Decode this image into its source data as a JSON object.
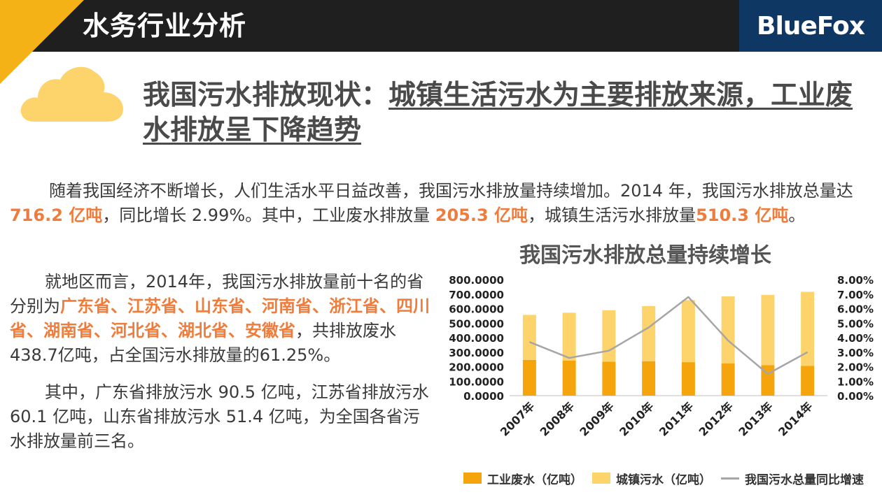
{
  "header": {
    "title": "水务行业分析",
    "logo_text": "BlueFox"
  },
  "colors": {
    "accent": "#f5b216",
    "industrial": "#f5a40c",
    "urban": "#fdd46b",
    "line": "#a6a6a6",
    "highlight": "#f07c3c",
    "logo_bg": "#0e3763"
  },
  "headline": {
    "lead": "我国污水排放现状：",
    "rest": "城镇生活污水为主要排放来源，工业废水排放呈下降趋势"
  },
  "paragraph1": {
    "t1": "随着我国经济不断增长，人们生活水平日益改善，我国污水排放量持续增加。2014 年，我国污水排放总量达 ",
    "h1": "716.2 亿吨",
    "t2": "，同比增长 2.99%。其中，工业废水排放量 ",
    "h2": "205.3 亿吨",
    "t3": "，城镇生活污水排放量",
    "h3": "510.3 亿吨",
    "t4": "。"
  },
  "paragraph2": {
    "t1": "就地区而言，2014年，我国污水排放量前十名的省分别为",
    "h1": "广东省、江苏省、山东省、河南省、浙江省、四川省、湖南省、河北省、湖北省、安徽省",
    "t2": "，共排放废水438.7亿吨，占全国污水排放量的61.25%。"
  },
  "paragraph3": {
    "t1": "其中，广东省排放污水 90.5 亿吨，江苏省排放污水 60.1 亿吨，山东省排放污水 51.4 亿吨，为全国各省污水排放量前三名。"
  },
  "chart_data": {
    "type": "bar",
    "stacked": true,
    "title": "我国污水排放总量持续增长",
    "categories": [
      "2007年",
      "2008年",
      "2009年",
      "2010年",
      "2011年",
      "2012年",
      "2013年",
      "2014年"
    ],
    "series": [
      {
        "name": "工业废水（亿吨）",
        "type": "bar",
        "axis": "left",
        "values": [
          246.6,
          241.7,
          234.4,
          237.5,
          230.9,
          221.6,
          209.8,
          205.3
        ]
      },
      {
        "name": "城镇污水（亿吨）",
        "type": "bar",
        "axis": "left",
        "values": [
          310.2,
          330.0,
          354.7,
          379.8,
          427.9,
          462.7,
          485.1,
          510.3
        ]
      },
      {
        "name": "我国污水总量同比增速",
        "type": "line",
        "axis": "right",
        "values": [
          3.7,
          2.6,
          3.1,
          4.7,
          6.8,
          3.8,
          1.5,
          3.0
        ]
      }
    ],
    "ylim_left": [
      0,
      800
    ],
    "ylim_right": [
      0,
      8
    ],
    "left_ticks": [
      "0.0000",
      "100.0000",
      "200.0000",
      "300.0000",
      "400.0000",
      "500.0000",
      "600.0000",
      "700.0000",
      "800.0000"
    ],
    "right_ticks": [
      "0.00%",
      "1.00%",
      "2.00%",
      "3.00%",
      "4.00%",
      "5.00%",
      "6.00%",
      "7.00%",
      "8.00%"
    ],
    "grid": false,
    "legend": "bottom"
  }
}
